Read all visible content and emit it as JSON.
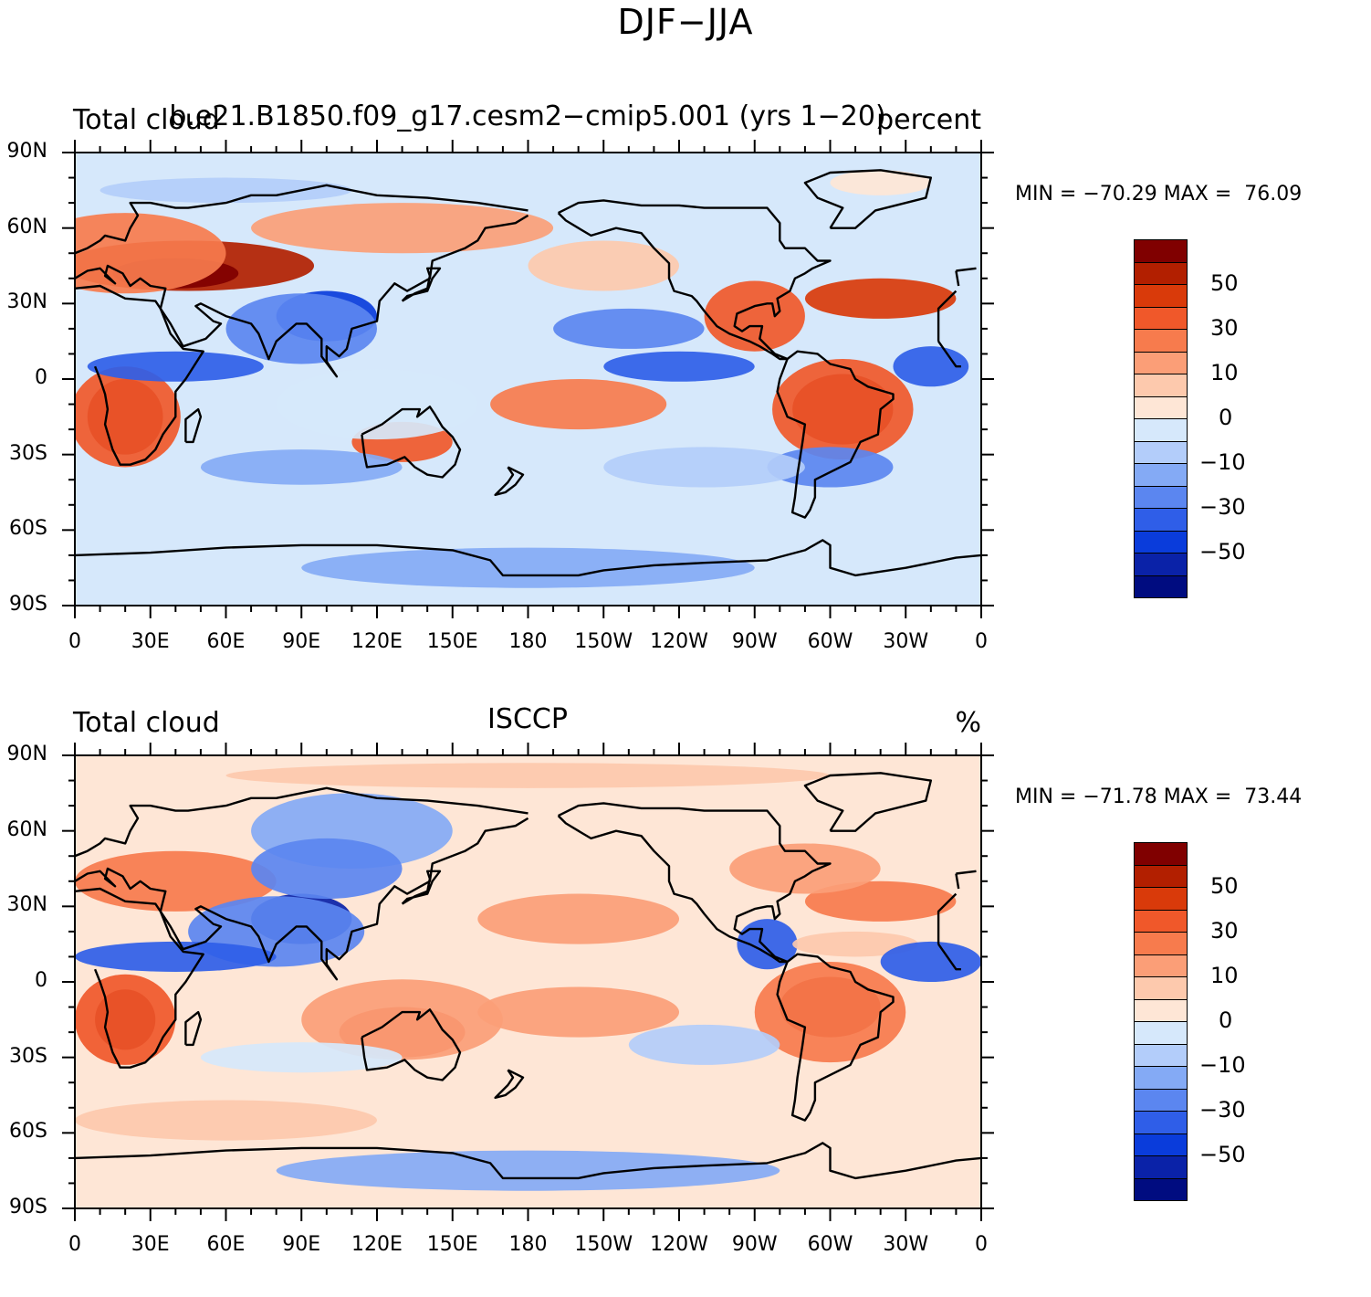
{
  "title": "DJF−JJA",
  "panels": [
    {
      "left_label": "Total cloud",
      "center_label": "b.e21.B1850.f09_g17.cesm2−cmip5.001 (yrs 1−20)",
      "right_label": "percent",
      "minmax": "MIN = −70.29 MAX =  76.09"
    },
    {
      "left_label": "Total cloud",
      "center_label": "ISCCP",
      "right_label": "%",
      "minmax": "MIN = −71.78 MAX =  73.44"
    }
  ],
  "lat_labels": [
    "90N",
    "60N",
    "30N",
    "0",
    "30S",
    "60S",
    "90S"
  ],
  "lon_labels": [
    "0",
    "30E",
    "60E",
    "90E",
    "120E",
    "150E",
    "180",
    "150W",
    "120W",
    "90W",
    "60W",
    "30W",
    "0"
  ],
  "colorbar": {
    "labels": [
      "50",
      "30",
      "10",
      "0",
      "−10",
      "−30",
      "−50"
    ],
    "colors": [
      "#800000",
      "#b21f00",
      "#d93a0a",
      "#f0582a",
      "#f77b4d",
      "#fb9e77",
      "#fdc9ad",
      "#fee6d6",
      "#d6e8fb",
      "#b3cdfa",
      "#84aaf5",
      "#5b86f0",
      "#2f5ee8",
      "#0a3cdb",
      "#0a22a8",
      "#000c80"
    ]
  },
  "chart_data": {
    "type": "heatmap",
    "description_units": "percent",
    "panels": [
      {
        "title": "b.e21.B1850.f09_g17.cesm2−cmip5.001 (yrs 1−20)",
        "variable": "Total cloud",
        "units": "percent",
        "min": -70.29,
        "max": 76.09
      },
      {
        "title": "ISCCP",
        "variable": "Total cloud",
        "units": "%",
        "min": -71.78,
        "max": 73.44
      }
    ],
    "x_ticks": [
      "0",
      "30E",
      "60E",
      "90E",
      "120E",
      "150E",
      "180",
      "150W",
      "120W",
      "90W",
      "60W",
      "30W",
      "0"
    ],
    "y_ticks": [
      "90N",
      "60N",
      "30N",
      "0",
      "30S",
      "60S",
      "90S"
    ],
    "contour_levels": [
      -60,
      -50,
      -40,
      -30,
      -20,
      -10,
      -5,
      0,
      5,
      10,
      20,
      30,
      40,
      50,
      60
    ]
  }
}
